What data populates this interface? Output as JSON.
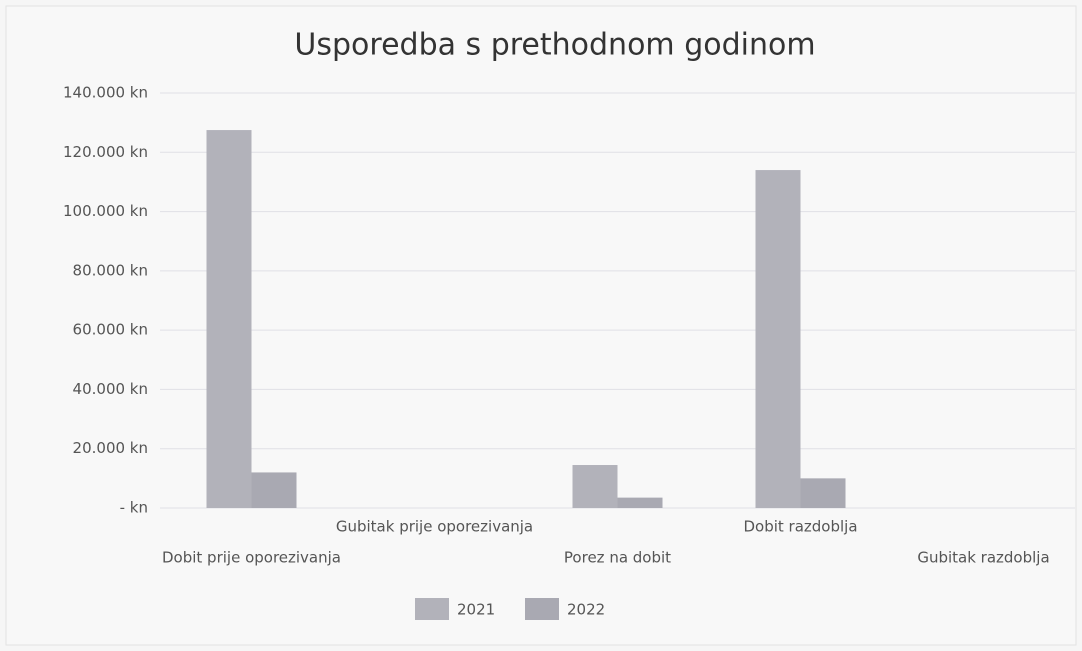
{
  "chart_data": {
    "type": "bar",
    "title": "Usporedba s prethodnom godinom",
    "categories": [
      "Dobit prije oporezivanja",
      "Gubitak prije oporezivanja",
      "Porez na dobit",
      "Dobit razdoblja",
      "Gubitak razdoblja"
    ],
    "series": [
      {
        "name": "2021",
        "color": "#b2b2ba",
        "values": [
          127500,
          0,
          14500,
          114000,
          0
        ]
      },
      {
        "name": "2022",
        "color": "#a9a9b2",
        "values": [
          12000,
          0,
          3500,
          10000,
          0
        ]
      }
    ],
    "ylim": [
      0,
      140000
    ],
    "yticks": [
      {
        "value": 0,
        "label": "- kn"
      },
      {
        "value": 20000,
        "label": "20.000 kn"
      },
      {
        "value": 40000,
        "label": "40.000 kn"
      },
      {
        "value": 60000,
        "label": "60.000 kn"
      },
      {
        "value": 80000,
        "label": "80.000 kn"
      },
      {
        "value": 100000,
        "label": "100.000 kn"
      },
      {
        "value": 120000,
        "label": "120.000 kn"
      },
      {
        "value": 140000,
        "label": "140.000 kn"
      }
    ],
    "grid": true,
    "legend": "bottom"
  }
}
